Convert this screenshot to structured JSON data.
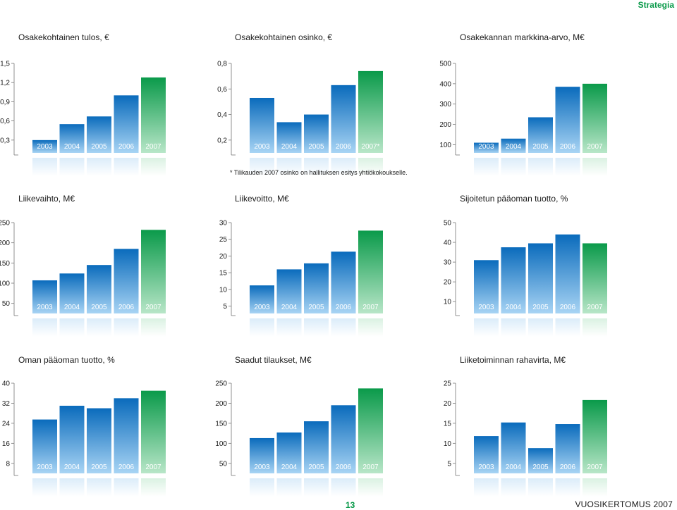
{
  "header": {
    "section": "Strategia"
  },
  "footnote": "* Tilikauden 2007 osinko on hallituksen esitys yhtiökokoukselle.",
  "footer": {
    "page_number": "13",
    "document_title": "VUOSIKERTOMUS 2007"
  },
  "colors": {
    "bar_blue_top": "#0a6bbc",
    "bar_blue_bottom": "#a8d4f4",
    "bar_green_top": "#0a9a4a",
    "bar_green_bottom": "#b8e6c8",
    "axis": "#777777"
  },
  "chart_data": [
    {
      "type": "bar",
      "title": "Osakekohtainen tulos, €",
      "categories": [
        "2003",
        "2004",
        "2005",
        "2006",
        "2007"
      ],
      "values": [
        0.3,
        0.55,
        0.67,
        1.0,
        1.28
      ],
      "yticks": [
        "0,3",
        "0,6",
        "0,9",
        "1,2",
        "1,5"
      ],
      "ylim": [
        0.1,
        1.5
      ],
      "highlight_last": true
    },
    {
      "type": "bar",
      "title": "Osakekohtainen osinko, €",
      "categories": [
        "2003",
        "2004",
        "2005",
        "2006",
        "2007*"
      ],
      "values": [
        0.53,
        0.34,
        0.4,
        0.63,
        0.74
      ],
      "yticks": [
        "0,2",
        "0,4",
        "0,6",
        "0,8"
      ],
      "ylim": [
        0.1,
        0.8
      ],
      "highlight_last": true
    },
    {
      "type": "bar",
      "title": "Osakekannan markkina-arvo, M€",
      "categories": [
        "2003",
        "2004",
        "2005",
        "2006",
        "2007"
      ],
      "values": [
        110,
        130,
        235,
        385,
        400
      ],
      "yticks": [
        "100",
        "200",
        "300",
        "400",
        "500"
      ],
      "ylim": [
        60,
        500
      ],
      "highlight_last": true
    },
    {
      "type": "bar",
      "title": "Liikevaihto, M€",
      "categories": [
        "2003",
        "2004",
        "2005",
        "2006",
        "2007"
      ],
      "values": [
        107,
        124,
        145,
        185,
        232
      ],
      "yticks": [
        "50",
        "100",
        "150",
        "200",
        "250"
      ],
      "ylim": [
        25,
        250
      ],
      "highlight_last": true
    },
    {
      "type": "bar",
      "title": "Liikevoitto, M€",
      "categories": [
        "2003",
        "2004",
        "2005",
        "2006",
        "2007"
      ],
      "values": [
        11.2,
        16,
        17.8,
        21.3,
        27.6
      ],
      "yticks": [
        "5",
        "10",
        "15",
        "20",
        "25",
        "30"
      ],
      "ylim": [
        2.8,
        30
      ],
      "highlight_last": true
    },
    {
      "type": "bar",
      "title": "Sijoitetun pääoman tuotto, %",
      "categories": [
        "2003",
        "2004",
        "2005",
        "2006",
        "2007"
      ],
      "values": [
        31,
        37.5,
        39.5,
        44,
        39.5
      ],
      "yticks": [
        "10",
        "20",
        "30",
        "40",
        "50"
      ],
      "ylim": [
        4,
        50
      ],
      "highlight_last": true
    },
    {
      "type": "bar",
      "title": "Oman pääoman tuotto, %",
      "categories": [
        "2003",
        "2004",
        "2005",
        "2006",
        "2007"
      ],
      "values": [
        25.5,
        31,
        30,
        34,
        37
      ],
      "yticks": [
        "8",
        "16",
        "24",
        "32",
        "40"
      ],
      "ylim": [
        4,
        40
      ],
      "highlight_last": true
    },
    {
      "type": "bar",
      "title": "Saadut tilaukset, M€",
      "categories": [
        "2003",
        "2004",
        "2005",
        "2006",
        "2007"
      ],
      "values": [
        113,
        127,
        155,
        195,
        237
      ],
      "yticks": [
        "50",
        "100",
        "150",
        "200",
        "250"
      ],
      "ylim": [
        25,
        250
      ],
      "highlight_last": true
    },
    {
      "type": "bar",
      "title": "Liiketoiminnan rahavirta, M€",
      "categories": [
        "2003",
        "2004",
        "2005",
        "2006",
        "2007"
      ],
      "values": [
        11.8,
        15.2,
        8.8,
        14.8,
        20.8
      ],
      "yticks": [
        "5",
        "10",
        "15",
        "20",
        "25"
      ],
      "ylim": [
        2.5,
        25
      ],
      "highlight_last": true
    }
  ]
}
